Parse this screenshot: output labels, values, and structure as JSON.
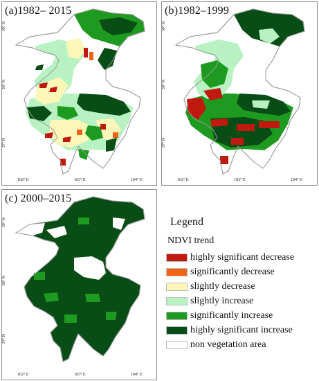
{
  "panels": {
    "a": {
      "title": "(a)1982– 2015"
    },
    "b": {
      "title": "(b)1982–1999"
    },
    "c": {
      "title": "(c) 2000–2015"
    }
  },
  "axes": {
    "lat": [
      "39° N",
      "38° N",
      "37° N"
    ],
    "lon": [
      "102° E",
      "103° E",
      "104° E"
    ]
  },
  "legend": {
    "title": "Legend",
    "subtitle": "NDVI trend",
    "items": [
      {
        "label": "highly  significant  decrease",
        "color": "#c0190f"
      },
      {
        "label": "significantly decrease",
        "color": "#f36315"
      },
      {
        "label": "slightly decrease",
        "color": "#fcf6b8"
      },
      {
        "label": "slightly increase",
        "color": "#b8f2c2"
      },
      {
        "label": "significantly increase",
        "color": "#1f9a21"
      },
      {
        "label": "highly significant  increase",
        "color": "#074d15"
      },
      {
        "label": "non vegetation area",
        "color": "#ffffff"
      }
    ]
  }
}
